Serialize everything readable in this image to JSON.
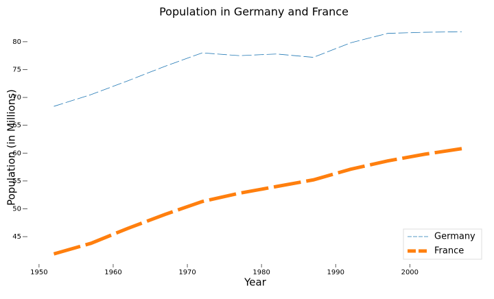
{
  "chart_data": {
    "type": "line",
    "title": "Population in Germany and France",
    "x_label": "Year",
    "y_label": "Population (in Millions)",
    "x": [
      1952,
      1957,
      1962,
      1967,
      1972,
      1977,
      1982,
      1987,
      1992,
      1997,
      2002,
      2007
    ],
    "series": [
      {
        "name": "Germany",
        "color": "#1f77b4",
        "width": 0.8,
        "dash": "14 4",
        "values": [
          68.4,
          70.5,
          73.0,
          75.6,
          78.0,
          77.5,
          77.8,
          77.2,
          79.8,
          81.5,
          81.7,
          81.8
        ]
      },
      {
        "name": "France",
        "color": "#ff7f0e",
        "width": 5,
        "dash": "40 8",
        "values": [
          41.9,
          43.8,
          46.5,
          49.0,
          51.3,
          52.8,
          54.0,
          55.2,
          57.1,
          58.6,
          59.8,
          60.8
        ]
      }
    ],
    "xlim": [
      1948.9,
      2009.5
    ],
    "xticks": [
      1950,
      1960,
      1970,
      1980,
      1990,
      2000
    ],
    "ylim": [
      40.7,
      83.8
    ],
    "yticks": [
      45,
      50,
      55,
      60,
      65,
      70,
      75,
      80
    ],
    "legend": "lower right"
  }
}
